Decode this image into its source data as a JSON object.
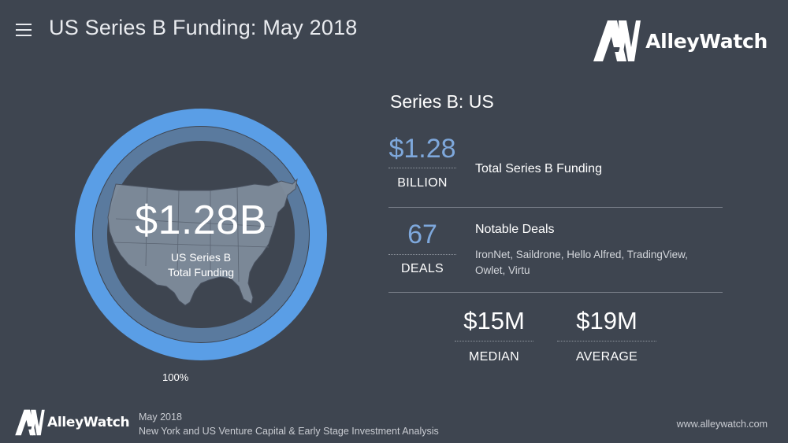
{
  "header": {
    "title": "US Series B Funding: May 2018",
    "menu_icon": "hamburger-menu-icon"
  },
  "brand": {
    "name": "AlleyWatch",
    "mark": "AW"
  },
  "colors": {
    "background": "#3e4550",
    "accent_blue": "#5a9ee6",
    "ring_inner": "#5a7a9e",
    "value_blue": "#7ea8dc"
  },
  "chart_data": {
    "type": "pie",
    "categories": [
      "US Series B Total Funding"
    ],
    "values": [
      100
    ],
    "center_value": "$1.28B",
    "center_label_line1": "US Series B",
    "center_label_line2": "Total Funding",
    "percent_label": "100%"
  },
  "stats": {
    "section_title": "Series B: US",
    "total": {
      "value": "$1.28",
      "unit": "BILLION",
      "label": "Total Series B Funding"
    },
    "deals": {
      "value": "67",
      "unit": "DEALS",
      "label": "Notable Deals",
      "notable_line1": "IronNet, Saildrone, Hello Alfred, TradingView,",
      "notable_line2": "Owlet, Virtu"
    },
    "median": {
      "value": "$15M",
      "label": "MEDIAN"
    },
    "average": {
      "value": "$19M",
      "label": "AVERAGE"
    }
  },
  "footer": {
    "brand": "AlleyWatch",
    "date": "May 2018",
    "description": "New York and US Venture Capital & Early Stage Investment Analysis",
    "url": "www.alleywatch.com"
  }
}
